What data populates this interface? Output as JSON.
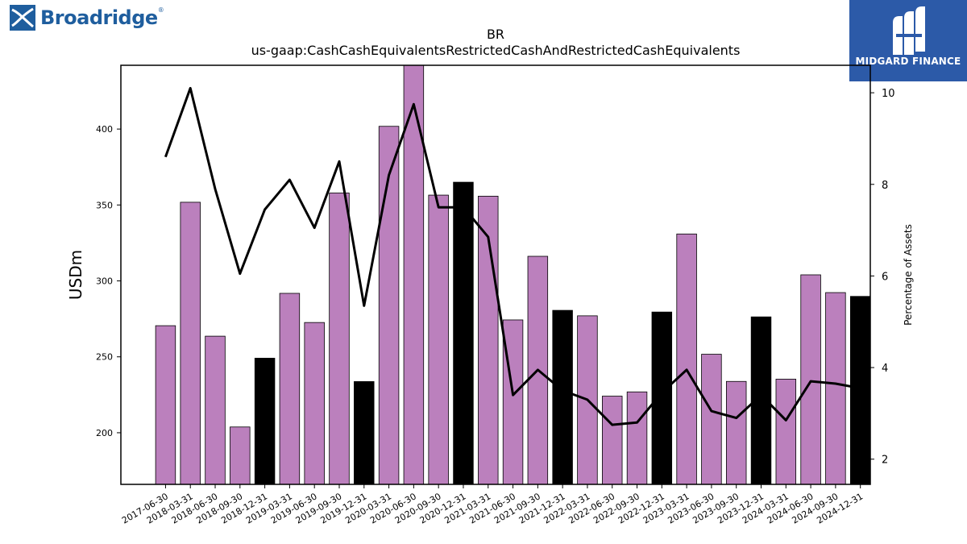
{
  "logos": {
    "left_text": "Broadridge",
    "left_tm": "®",
    "right_text": "MIDGARD FINANCE"
  },
  "chart_data": {
    "type": "bar",
    "title": "BR",
    "subtitle": "us-gaap:CashCashEquivalentsRestrictedCashAndRestrictedCashEquivalents",
    "ylabel": "USDm",
    "y2label": "Percentage of Assets",
    "ylim": [
      166,
      442
    ],
    "y2lim": [
      1.45,
      10.6
    ],
    "yticks": [
      200,
      250,
      300,
      350,
      400
    ],
    "y2ticks": [
      2,
      4,
      6,
      8,
      10
    ],
    "colors": {
      "bar": "#bb80bd",
      "bar_highlight": "#000000",
      "line": "#000000"
    },
    "categories": [
      "2017-06-30",
      "2018-03-31",
      "2018-06-30",
      "2018-09-30",
      "2018-12-31",
      "2019-03-31",
      "2019-06-30",
      "2019-09-30",
      "2019-12-31",
      "2020-03-31",
      "2020-06-30",
      "2020-09-30",
      "2020-12-31",
      "2021-03-31",
      "2021-06-30",
      "2021-09-30",
      "2021-12-31",
      "2022-03-31",
      "2022-06-30",
      "2022-09-30",
      "2022-12-31",
      "2023-03-31",
      "2023-06-30",
      "2023-09-30",
      "2023-12-31",
      "2024-03-31",
      "2024-06-30",
      "2024-09-30",
      "2024-12-31"
    ],
    "series": [
      {
        "type": "bar",
        "values": [
          270.5,
          351.8,
          263.6,
          203.8,
          249.1,
          291.8,
          272.6,
          357.9,
          233.7,
          401.8,
          442.0,
          356.5,
          365.0,
          355.8,
          274.3,
          316.2,
          280.6,
          277.0,
          224.1,
          226.9,
          279.5,
          330.9,
          251.7,
          233.8,
          276.3,
          235.3,
          304.0,
          292.3,
          289.8
        ],
        "highlight": [
          false,
          false,
          false,
          false,
          true,
          false,
          false,
          false,
          true,
          false,
          false,
          false,
          true,
          false,
          false,
          false,
          true,
          false,
          false,
          false,
          true,
          false,
          false,
          false,
          true,
          false,
          false,
          false,
          true
        ]
      },
      {
        "type": "line",
        "axis": "right",
        "values": [
          8.6,
          10.1,
          7.9,
          6.05,
          7.45,
          8.1,
          7.05,
          8.5,
          5.35,
          8.2,
          9.75,
          7.5,
          7.5,
          6.85,
          3.4,
          3.95,
          3.5,
          3.3,
          2.75,
          2.8,
          3.45,
          3.95,
          3.05,
          2.9,
          3.4,
          2.85,
          3.7,
          3.65,
          3.55
        ]
      }
    ]
  }
}
